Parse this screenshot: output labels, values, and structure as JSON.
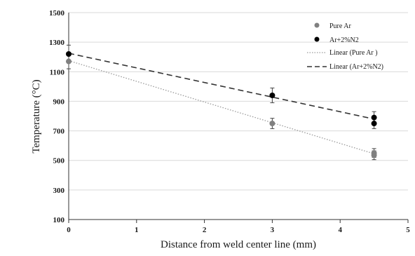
{
  "chart_data": {
    "type": "scatter",
    "title": "",
    "xlabel": "Distance from weld center line (mm)",
    "ylabel": "Temperature (°C)",
    "xlim": [
      0,
      5
    ],
    "ylim": [
      100,
      1500
    ],
    "x_ticks": [
      "0",
      "1",
      "2",
      "3",
      "4",
      "5"
    ],
    "y_ticks": [
      "100",
      "300",
      "500",
      "700",
      "900",
      "1100",
      "1300",
      "1500"
    ],
    "grid": true,
    "legend_position": "top-right",
    "series": [
      {
        "name": "Pure Ar",
        "color": "#808080",
        "marker": "circle",
        "points": [
          {
            "x": 0,
            "y": 1170,
            "err": 50
          },
          {
            "x": 3,
            "y": 750,
            "err": 35
          },
          {
            "x": 4.5,
            "y": 550,
            "err": 30
          },
          {
            "x": 4.5,
            "y": 535,
            "err": 30
          }
        ]
      },
      {
        "name": "Ar+2%N2",
        "color": "#000000",
        "marker": "circle",
        "points": [
          {
            "x": 0,
            "y": 1220,
            "err": 60
          },
          {
            "x": 3,
            "y": 940,
            "err": 50
          },
          {
            "x": 4.5,
            "y": 790,
            "err": 40
          },
          {
            "x": 4.5,
            "y": 750,
            "err": 35
          }
        ]
      }
    ],
    "trendlines": [
      {
        "name": "Linear (Pure Ar )",
        "color": "#9a9a9a",
        "style": "dotted",
        "from": [
          0,
          1175
        ],
        "to": [
          4.5,
          545
        ]
      },
      {
        "name": "Linear (Ar+2%N2)",
        "color": "#333333",
        "style": "dashed",
        "from": [
          0,
          1225
        ],
        "to": [
          4.5,
          780
        ]
      }
    ]
  }
}
